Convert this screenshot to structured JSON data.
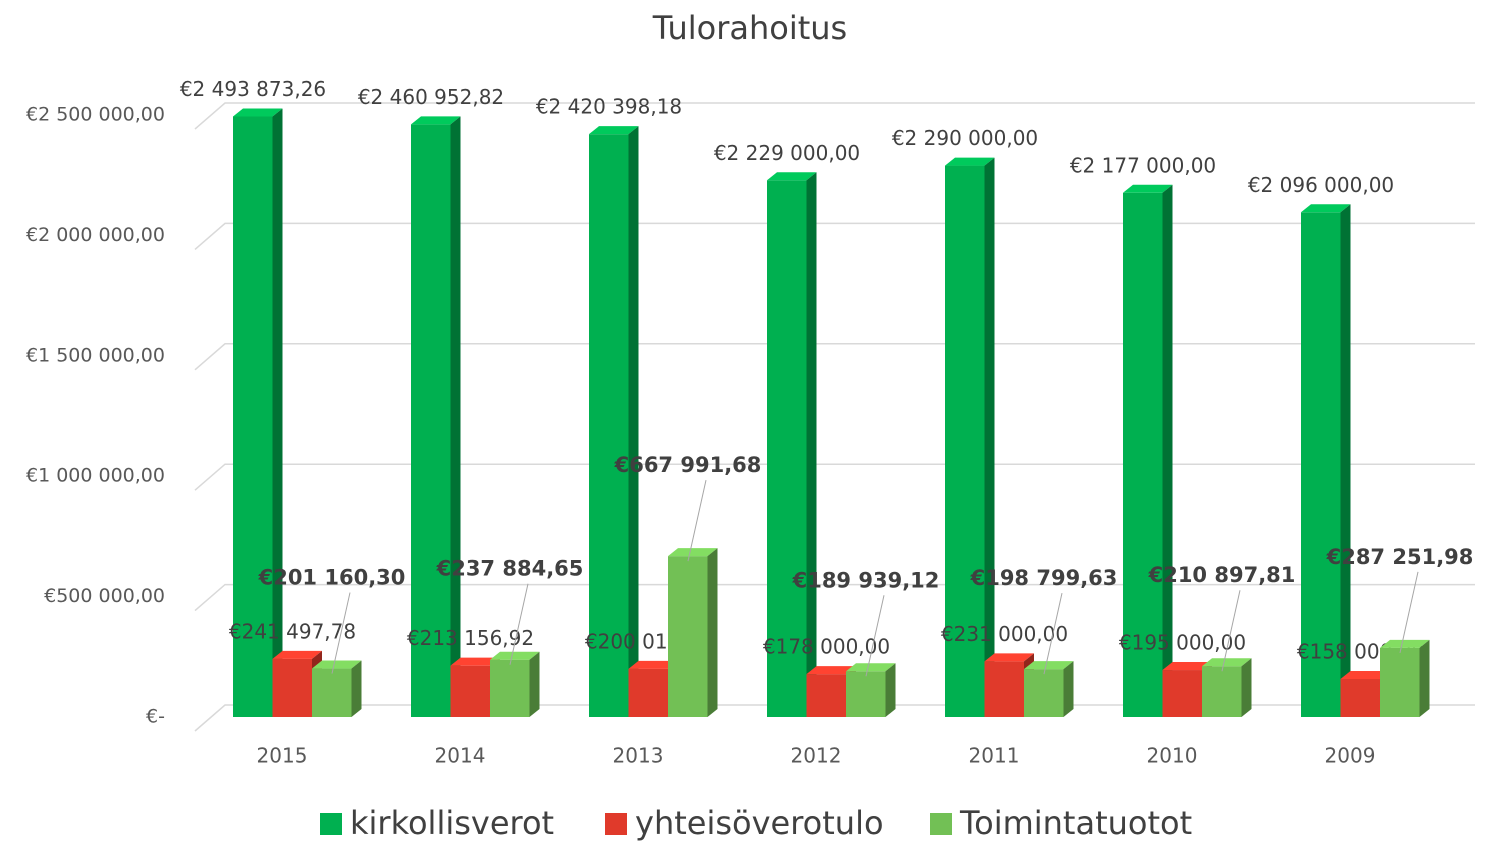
{
  "chart_data": {
    "type": "bar3d",
    "title": "Tulorahoitus",
    "categories": [
      "2015",
      "2014",
      "2013",
      "2012",
      "2011",
      "2010",
      "2009"
    ],
    "series": [
      {
        "name": "kirkollisverot",
        "color": "#00b050",
        "values": [
          2493873.26,
          2460952.82,
          2420398.18,
          2229000,
          2290000,
          2177000,
          2096000
        ],
        "value_labels": [
          "€2 493 873,26",
          "€2 460 952,82",
          "€2 420 398,18",
          "€2 229 000,00",
          "€2 290 000,00",
          "€2 177 000,00",
          "€2 096 000,00"
        ]
      },
      {
        "name": "yhteisöverotulo",
        "color": "#e03a2b",
        "values": [
          241497.78,
          213156.92,
          200016.07,
          178000,
          231000,
          195000,
          158000
        ],
        "value_labels": [
          "€241 497,78",
          "€213 156,92",
          "€200 016,07",
          "€178 000,00",
          "€231 000,00",
          "€195 000,00",
          "€158 000,00"
        ]
      },
      {
        "name": "Toimintatuotot",
        "color": "#72c055",
        "values": [
          201160.3,
          237884.65,
          667991.68,
          189939.12,
          198799.63,
          210897.81,
          287251.98
        ],
        "value_labels": [
          "€201 160,30",
          "€237 884,65",
          "€667 991,68",
          "€189 939,12",
          "€198 799,63",
          "€210 897,81",
          "€287 251,98"
        ]
      }
    ],
    "ylim": [
      0,
      2500000
    ],
    "yticks": [
      {
        "value": 0,
        "label": "€-"
      },
      {
        "value": 500000,
        "label": "€500 000,00"
      },
      {
        "value": 1000000,
        "label": "€1 000 000,00"
      },
      {
        "value": 1500000,
        "label": "€1 500 000,00"
      },
      {
        "value": 2000000,
        "label": "€2 000 000,00"
      },
      {
        "value": 2500000,
        "label": "€2 500 000,00"
      }
    ],
    "grid": true,
    "legend": "bottom"
  }
}
